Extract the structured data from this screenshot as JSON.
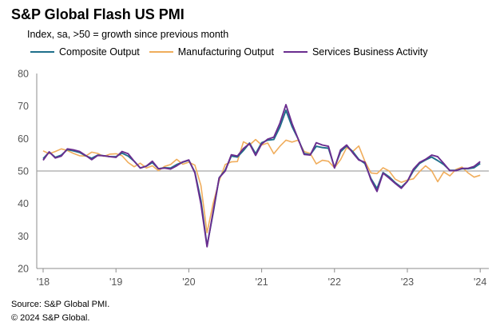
{
  "title": "S&P Global Flash US PMI",
  "subtitle": "Index, sa, >50 = growth  since previous month",
  "footer": {
    "source": "Source: S&P Global PMI.",
    "copyright": "© 2024 S&P Global."
  },
  "colors": {
    "composite": "#1f6f8b",
    "manufacturing": "#f0ad5c",
    "services": "#6a2d8f",
    "axis": "#8c8c8c",
    "reference_line": "#a6a6a6"
  },
  "chart_data": {
    "type": "line",
    "title": "S&P Global Flash US PMI",
    "subtitle": "Index, sa, >50 = growth  since previous month",
    "x_start": "2018-01",
    "x_tick_labels": [
      "'18",
      "'19",
      "'20",
      "'21",
      "'22",
      "'23",
      "'24"
    ],
    "ylim": [
      20,
      80
    ],
    "y_ticks": [
      20,
      30,
      40,
      50,
      60,
      70,
      80
    ],
    "reference_line": 50,
    "legend_position": "top",
    "grid": false,
    "series": [
      {
        "name": "Composite Output",
        "color": "#1f6f8b",
        "values": [
          53.8,
          55.8,
          54.2,
          54.9,
          56.6,
          56.2,
          55.7,
          54.7,
          53.9,
          54.9,
          54.7,
          54.4,
          54.4,
          55.5,
          54.6,
          53.0,
          50.9,
          51.5,
          52.6,
          50.7,
          51.0,
          50.9,
          52.0,
          52.7,
          53.3,
          49.6,
          40.9,
          27.0,
          37.0,
          47.9,
          50.3,
          54.6,
          54.3,
          56.3,
          58.6,
          55.3,
          58.7,
          59.5,
          59.7,
          63.5,
          68.7,
          63.7,
          59.9,
          55.4,
          55.0,
          57.6,
          57.2,
          57.0,
          51.1,
          55.9,
          57.7,
          56.0,
          53.6,
          52.3,
          47.7,
          44.6,
          49.5,
          48.2,
          46.4,
          45.0,
          46.8,
          50.1,
          52.3,
          53.4,
          54.3,
          53.2,
          52.0,
          50.2,
          50.2,
          50.7,
          50.7,
          51.0,
          52.3
        ]
      },
      {
        "name": "Manufacturing Output",
        "color": "#f0ad5c",
        "values": [
          56.2,
          55.3,
          56.0,
          56.8,
          56.3,
          55.4,
          54.7,
          54.6,
          55.8,
          55.4,
          54.5,
          55.2,
          55.3,
          54.7,
          52.6,
          51.3,
          52.4,
          50.9,
          51.6,
          50.1,
          51.4,
          52.0,
          53.6,
          52.1,
          52.7,
          51.8,
          45.5,
          31.0,
          40.0,
          47.0,
          52.0,
          52.8,
          52.9,
          59.0,
          58.0,
          59.7,
          58.0,
          58.6,
          55.3,
          57.6,
          59.5,
          58.9,
          59.5,
          56.0,
          55.4,
          52.2,
          53.3,
          53.0,
          51.0,
          53.5,
          57.2,
          56.0,
          57.7,
          53.0,
          49.4,
          49.2,
          51.0,
          50.0,
          47.5,
          46.5,
          47.2,
          47.6,
          49.8,
          51.6,
          50.1,
          46.7,
          49.7,
          48.5,
          50.5,
          51.2,
          49.4,
          48.1,
          48.7
        ]
      },
      {
        "name": "Services Business Activity",
        "color": "#6a2d8f",
        "values": [
          53.3,
          55.9,
          54.0,
          54.6,
          56.8,
          56.5,
          56.0,
          54.8,
          53.5,
          54.8,
          54.7,
          54.4,
          54.2,
          56.0,
          55.3,
          53.0,
          50.9,
          51.5,
          53.0,
          50.7,
          50.9,
          50.6,
          51.6,
          52.8,
          53.4,
          49.4,
          39.8,
          26.7,
          37.5,
          47.9,
          50.0,
          55.0,
          54.6,
          56.9,
          58.4,
          54.8,
          58.3,
          59.8,
          60.4,
          64.7,
          70.4,
          64.6,
          59.9,
          55.1,
          54.9,
          58.7,
          58.0,
          57.6,
          50.9,
          56.5,
          58.0,
          55.6,
          53.4,
          52.7,
          47.3,
          43.7,
          49.3,
          47.8,
          46.2,
          44.7,
          46.8,
          50.6,
          52.6,
          53.6,
          54.9,
          54.4,
          52.3,
          50.1,
          50.1,
          50.8,
          50.8,
          51.4,
          52.9
        ]
      }
    ]
  }
}
